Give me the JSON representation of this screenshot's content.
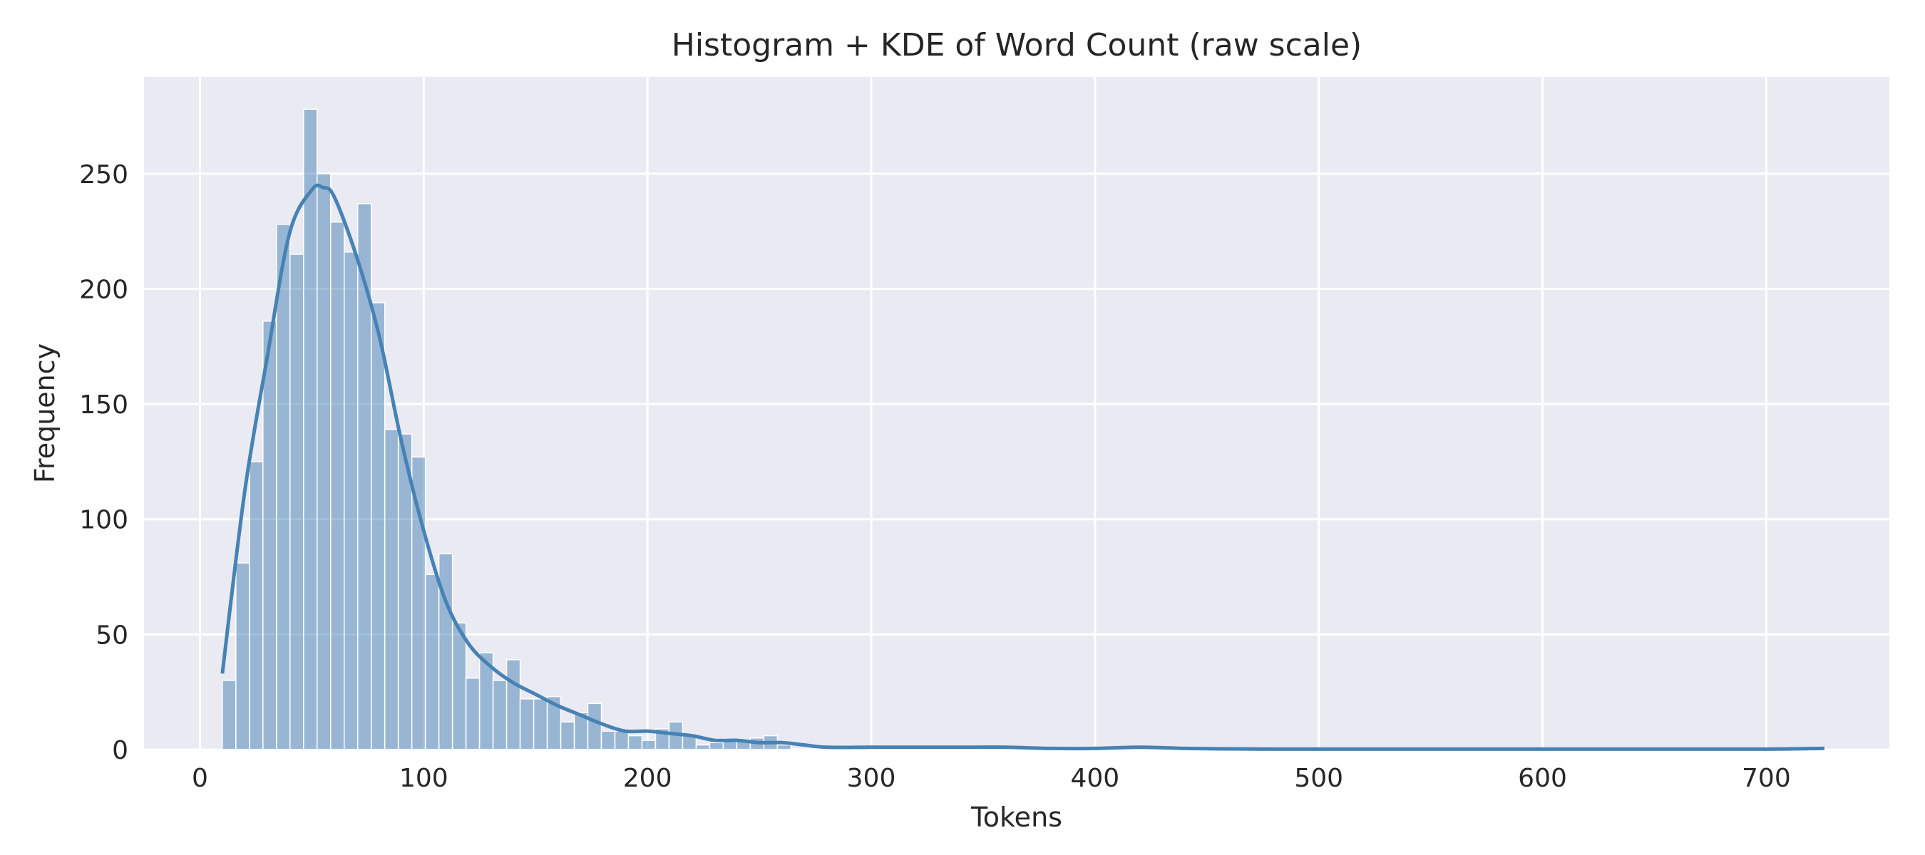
{
  "chart_data": {
    "type": "bar",
    "title": "Histogram + KDE of Word Count (raw scale)",
    "xlabel": "Tokens",
    "ylabel": "Frequency",
    "xlim": [
      -25,
      755
    ],
    "ylim": [
      0,
      292
    ],
    "xticks": [
      0,
      100,
      200,
      300,
      400,
      500,
      600,
      700
    ],
    "yticks": [
      0,
      50,
      100,
      150,
      200,
      250
    ],
    "grid": true,
    "colors": {
      "background": "#EAEAF2",
      "grid": "#FFFFFF",
      "bar_fill": "#4682B4",
      "bar_fill_opacity": 0.5,
      "bar_edge": "#FFFFFF",
      "kde_line": "#4682B4",
      "text": "#262626"
    },
    "histogram": {
      "bin_start": 10,
      "bin_width": 6.05,
      "counts": [
        30,
        81,
        125,
        186,
        228,
        215,
        278,
        250,
        229,
        216,
        237,
        194,
        139,
        137,
        127,
        76,
        85,
        55,
        31,
        42,
        30,
        39,
        22,
        22,
        23,
        12,
        16,
        20,
        8,
        8,
        6,
        4,
        9,
        12,
        6,
        2,
        3,
        4,
        4,
        5,
        6,
        2,
        0,
        0,
        0,
        0,
        0,
        0,
        0,
        0,
        0,
        0,
        0,
        0,
        0,
        0,
        0,
        0,
        0,
        0,
        0,
        0,
        0,
        0,
        0,
        0,
        0,
        0,
        0,
        0,
        0,
        0,
        0,
        0,
        0,
        0,
        0,
        0,
        0,
        0,
        0,
        0,
        0,
        0,
        0,
        0,
        0,
        0,
        0,
        0,
        0,
        0,
        0,
        0,
        0,
        0,
        0,
        0,
        0,
        0,
        0,
        0,
        0,
        0,
        0,
        0,
        0,
        0,
        0,
        0,
        0,
        0,
        0,
        0,
        0,
        0,
        0,
        0,
        0,
        0,
        0,
        0
      ]
    },
    "kde": {
      "x": [
        10,
        20,
        30,
        40,
        50,
        55,
        60,
        70,
        80,
        90,
        100,
        110,
        120,
        130,
        140,
        150,
        160,
        170,
        180,
        190,
        200,
        210,
        220,
        230,
        240,
        250,
        260,
        270,
        280,
        300,
        320,
        340,
        360,
        380,
        400,
        420,
        440,
        460,
        480,
        500,
        550,
        600,
        650,
        700,
        726
      ],
      "y": [
        33,
        112,
        170,
        224,
        243,
        244,
        240,
        214,
        180,
        134,
        95,
        64,
        46,
        36,
        29,
        24,
        19,
        15,
        11,
        8,
        8,
        7,
        6,
        4,
        4,
        3,
        3,
        2,
        1,
        1,
        1,
        1,
        1,
        0.5,
        0.5,
        1,
        0.5,
        0.3,
        0.2,
        0.2,
        0.2,
        0.2,
        0.2,
        0.2,
        0.5
      ]
    }
  }
}
